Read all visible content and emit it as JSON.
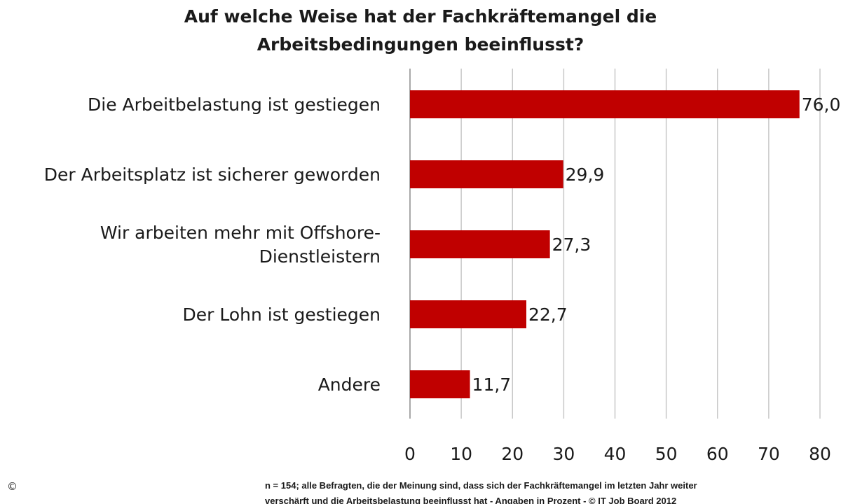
{
  "chart_data": {
    "type": "bar",
    "orientation": "horizontal",
    "title": [
      "Auf welche Weise hat der Fachkräftemangel die",
      "Arbeitsbedingungen beeinflusst?"
    ],
    "categories": [
      [
        "Die Arbeitbelastung ist gestiegen"
      ],
      [
        "Der Arbeitsplatz ist sicherer geworden"
      ],
      [
        "Wir arbeiten mehr mit Offshore-",
        "Dienstleistern"
      ],
      [
        "Der Lohn ist gestiegen"
      ],
      [
        "Andere"
      ]
    ],
    "values": [
      76.0,
      29.9,
      27.3,
      22.7,
      11.7
    ],
    "value_labels": [
      "76,0",
      "29,9",
      "27,3",
      "22,7",
      "11,7"
    ],
    "xlim": [
      0,
      80
    ],
    "xticks": [
      0,
      10,
      20,
      30,
      40,
      50,
      60,
      70,
      80
    ],
    "xtick_labels": [
      "0",
      "10",
      "20",
      "30",
      "40",
      "50",
      "60",
      "70",
      "80"
    ],
    "grid": "vertical",
    "bar_color": "#C00000",
    "grid_color": "#C8C8C8",
    "xlabel": "",
    "ylabel": ""
  },
  "footnote": [
    "n = 154; alle Befragten, die der Meinung sind, dass sich der Fachkräftemangel im letzten Jahr weiter",
    "verschärft und die Arbeitsbelastung beeinflusst hat - Angaben in Prozent - © IT Job Board 2012"
  ],
  "copyright_symbol": "©"
}
